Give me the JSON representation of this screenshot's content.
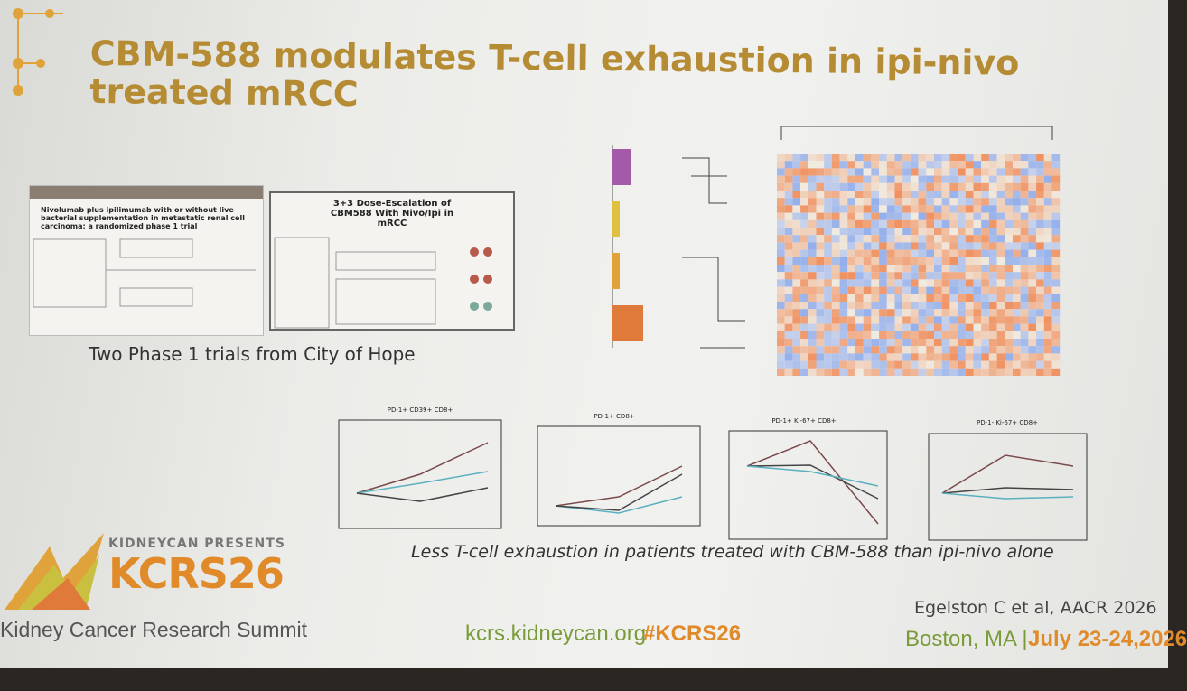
{
  "slide": {
    "title": "CBM-588 modulates T-cell exhaustion in ipi-nivo treated mRCC",
    "left_panel": {
      "paper_title": "Nivolumab plus ipilimumab with or without live bacterial supplementation in metastatic renal cell carcinoma: a randomized phase 1 trial",
      "trial_title": "3+3 Dose-Escalation of CBM588 With Nivo/Ipi in mRCC",
      "caption": "Two Phase 1 trials from City of Hope"
    },
    "charts": [
      "PD-1+ CD39+ CD8+",
      "PD-1+ CD8+",
      "PD-1+ Ki-67+ CD8+",
      "PD-1- Ki-67+ CD8+"
    ],
    "chart_caption": "Less T-cell exhaustion in patients treated with CBM-588 than ipi-nivo alone",
    "footer": {
      "presents": "KIDNEYCAN PRESENTS",
      "logo": "KCRS26",
      "summit": "Kidney Cancer Research Summit",
      "url": "kcrs.kidneycan.org",
      "hashtag": "#KCRS26",
      "citation": "Egelston C et al, AACR 2026",
      "location": "Boston, MA |",
      "dates": "July 23-24,2026"
    }
  }
}
